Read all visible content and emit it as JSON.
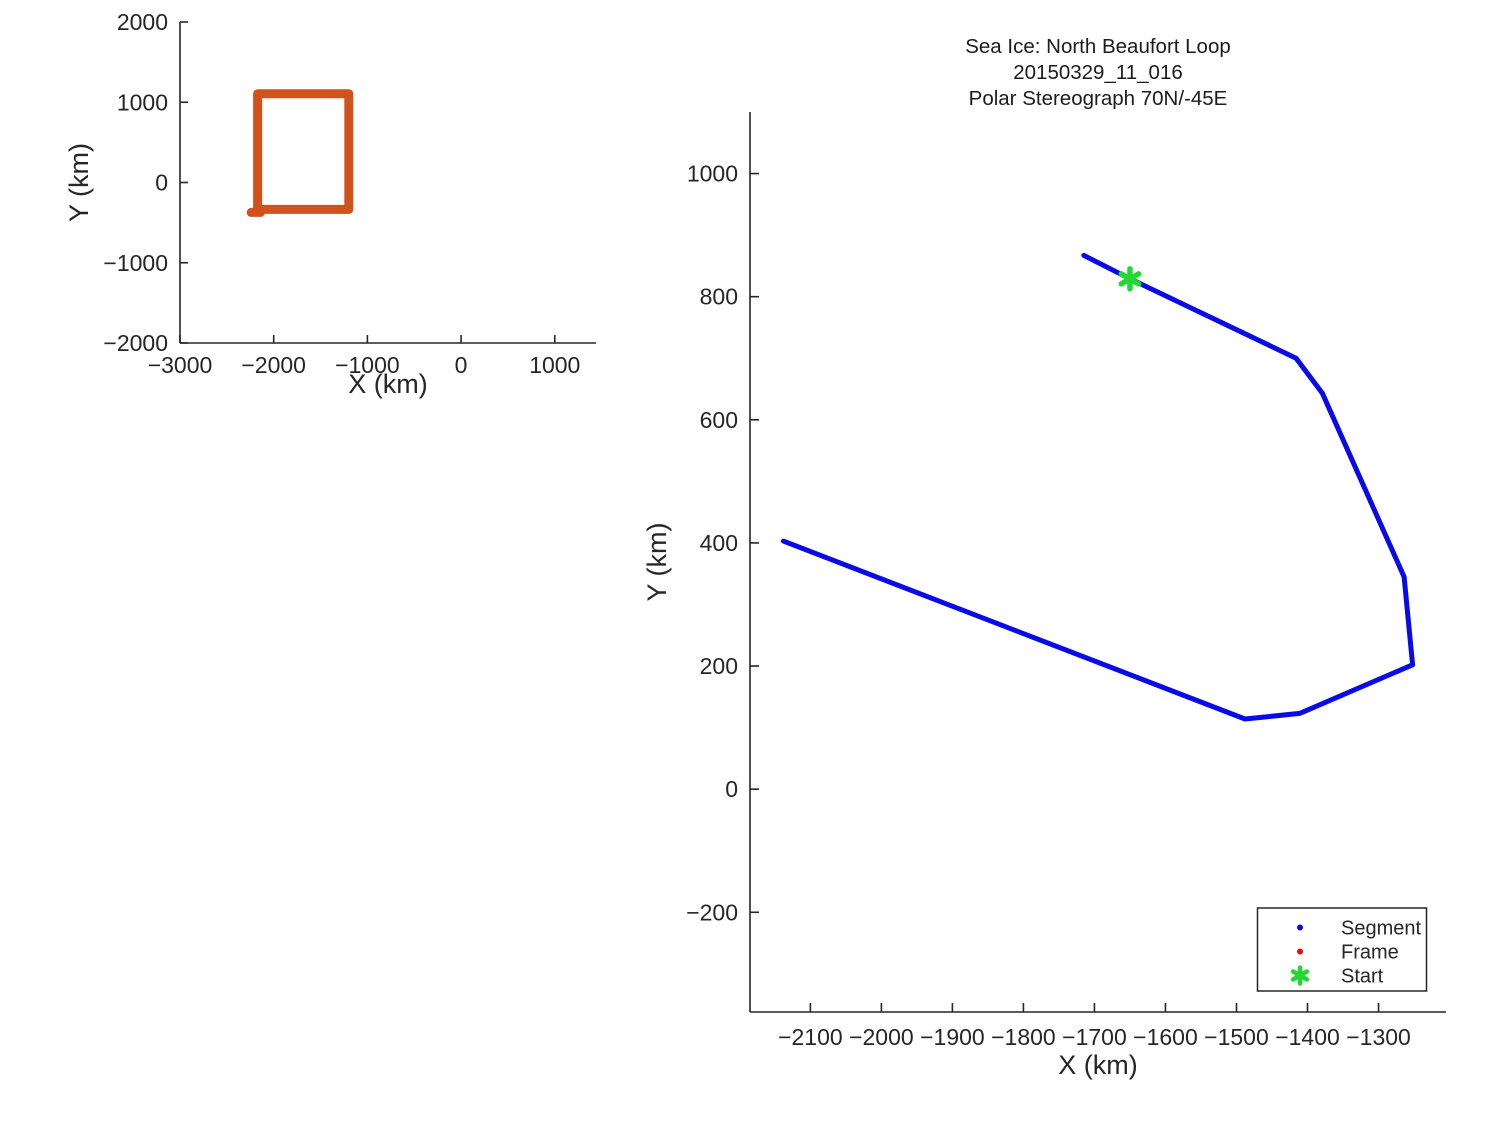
{
  "figure": {
    "background": "#ffffff"
  },
  "title_block": {
    "lines": [
      "Sea Ice: North Beaufort Loop",
      "20150329_11_016",
      "Polar Stereograph 70N/-45E"
    ]
  },
  "colors": {
    "segment_line": "#0a0ae8",
    "frame_marker": "#e01010",
    "start_marker": "#25d732",
    "coverage_box": "#d2521e",
    "axis": "#262626",
    "text": "#262626"
  },
  "legend": {
    "position": "bottom-right",
    "items": [
      {
        "label": "Segment",
        "marker": "dot",
        "color": "#0a0ae8"
      },
      {
        "label": "Frame",
        "marker": "dot",
        "color": "#e01010"
      },
      {
        "label": "Start",
        "marker": "asterisk",
        "color": "#25d732"
      }
    ]
  },
  "chart_data": [
    {
      "id": "overview",
      "type": "line",
      "title": "",
      "xlabel": "X (km)",
      "ylabel": "Y (km)",
      "xlim": [
        -3000,
        1440
      ],
      "ylim": [
        -2000,
        2000
      ],
      "xticks": [
        -3000,
        -2000,
        -1000,
        0,
        1000
      ],
      "yticks": [
        -2000,
        -1000,
        0,
        1000,
        2000
      ],
      "grid": false,
      "legend_position": "none",
      "series": [
        {
          "name": "coverage-box",
          "color": "#d2521e",
          "linewidth": 9,
          "x": [
            -2172,
            -1198,
            -1198,
            -2172,
            -2172
          ],
          "y": [
            -335,
            -335,
            1107,
            1107,
            -335
          ]
        },
        {
          "name": "coverage-box-tail",
          "color": "#d2521e",
          "linewidth": 9,
          "x": [
            -2240,
            -2140
          ],
          "y": [
            -372,
            -372
          ]
        }
      ],
      "markers": []
    },
    {
      "id": "main",
      "type": "line",
      "title": "Sea Ice: North Beaufort Loop 20150329_11_016 Polar Stereograph 70N/-45E",
      "xlabel": "X (km)",
      "ylabel": "Y (km)",
      "xlim": [
        -2185,
        -1205
      ],
      "ylim": [
        -362,
        1100
      ],
      "xticks": [
        -2100,
        -2000,
        -1900,
        -1800,
        -1700,
        -1600,
        -1500,
        -1400,
        -1300
      ],
      "yticks": [
        -200,
        0,
        200,
        400,
        600,
        800,
        1000
      ],
      "grid": false,
      "legend_position": "bottom-right",
      "series": [
        {
          "name": "Segment",
          "color": "#0a0ae8",
          "linewidth": 5,
          "x": [
            -1715,
            -1650,
            -1416,
            -1379,
            -1264,
            -1252,
            -1411,
            -1488,
            -2138
          ],
          "y": [
            867,
            829,
            700,
            643,
            345,
            202,
            123,
            114,
            403
          ]
        }
      ],
      "markers": [
        {
          "name": "Start",
          "shape": "asterisk",
          "color": "#25d732",
          "x": -1650,
          "y": 829
        }
      ]
    }
  ]
}
